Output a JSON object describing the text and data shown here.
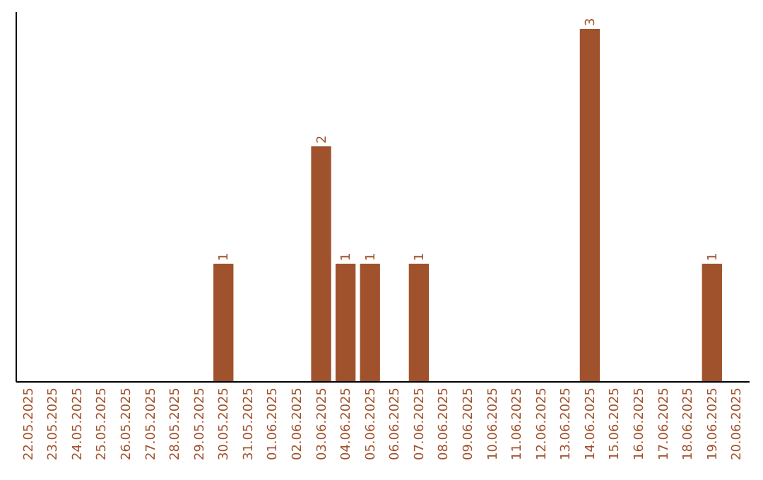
{
  "chart_data": {
    "type": "bar",
    "categories": [
      "22.05.2025",
      "23.05.2025",
      "24.05.2025",
      "25.05.2025",
      "26.05.2025",
      "27.05.2025",
      "28.05.2025",
      "29.05.2025",
      "30.05.2025",
      "31.05.2025",
      "01.06.2025",
      "02.06.2025",
      "03.06.2025",
      "04.06.2025",
      "05.06.2025",
      "06.06.2025",
      "07.06.2025",
      "08.06.2025",
      "09.06.2025",
      "10.06.2025",
      "11.06.2025",
      "12.06.2025",
      "13.06.2025",
      "14.06.2025",
      "15.06.2025",
      "16.06.2025",
      "17.06.2025",
      "18.06.2025",
      "19.06.2025",
      "20.06.2025"
    ],
    "values": [
      0,
      0,
      0,
      0,
      0,
      0,
      0,
      0,
      1,
      0,
      0,
      0,
      2,
      1,
      1,
      0,
      1,
      0,
      0,
      0,
      0,
      0,
      0,
      3,
      0,
      0,
      0,
      0,
      1,
      0
    ],
    "color": "#a0522d",
    "ylim": [
      0,
      3.15
    ],
    "value_labels": [
      null,
      null,
      null,
      null,
      null,
      null,
      null,
      null,
      "1",
      null,
      null,
      null,
      "2",
      "1",
      "1",
      null,
      "1",
      null,
      null,
      null,
      null,
      null,
      null,
      "3",
      null,
      null,
      null,
      null,
      "1",
      null
    ]
  }
}
